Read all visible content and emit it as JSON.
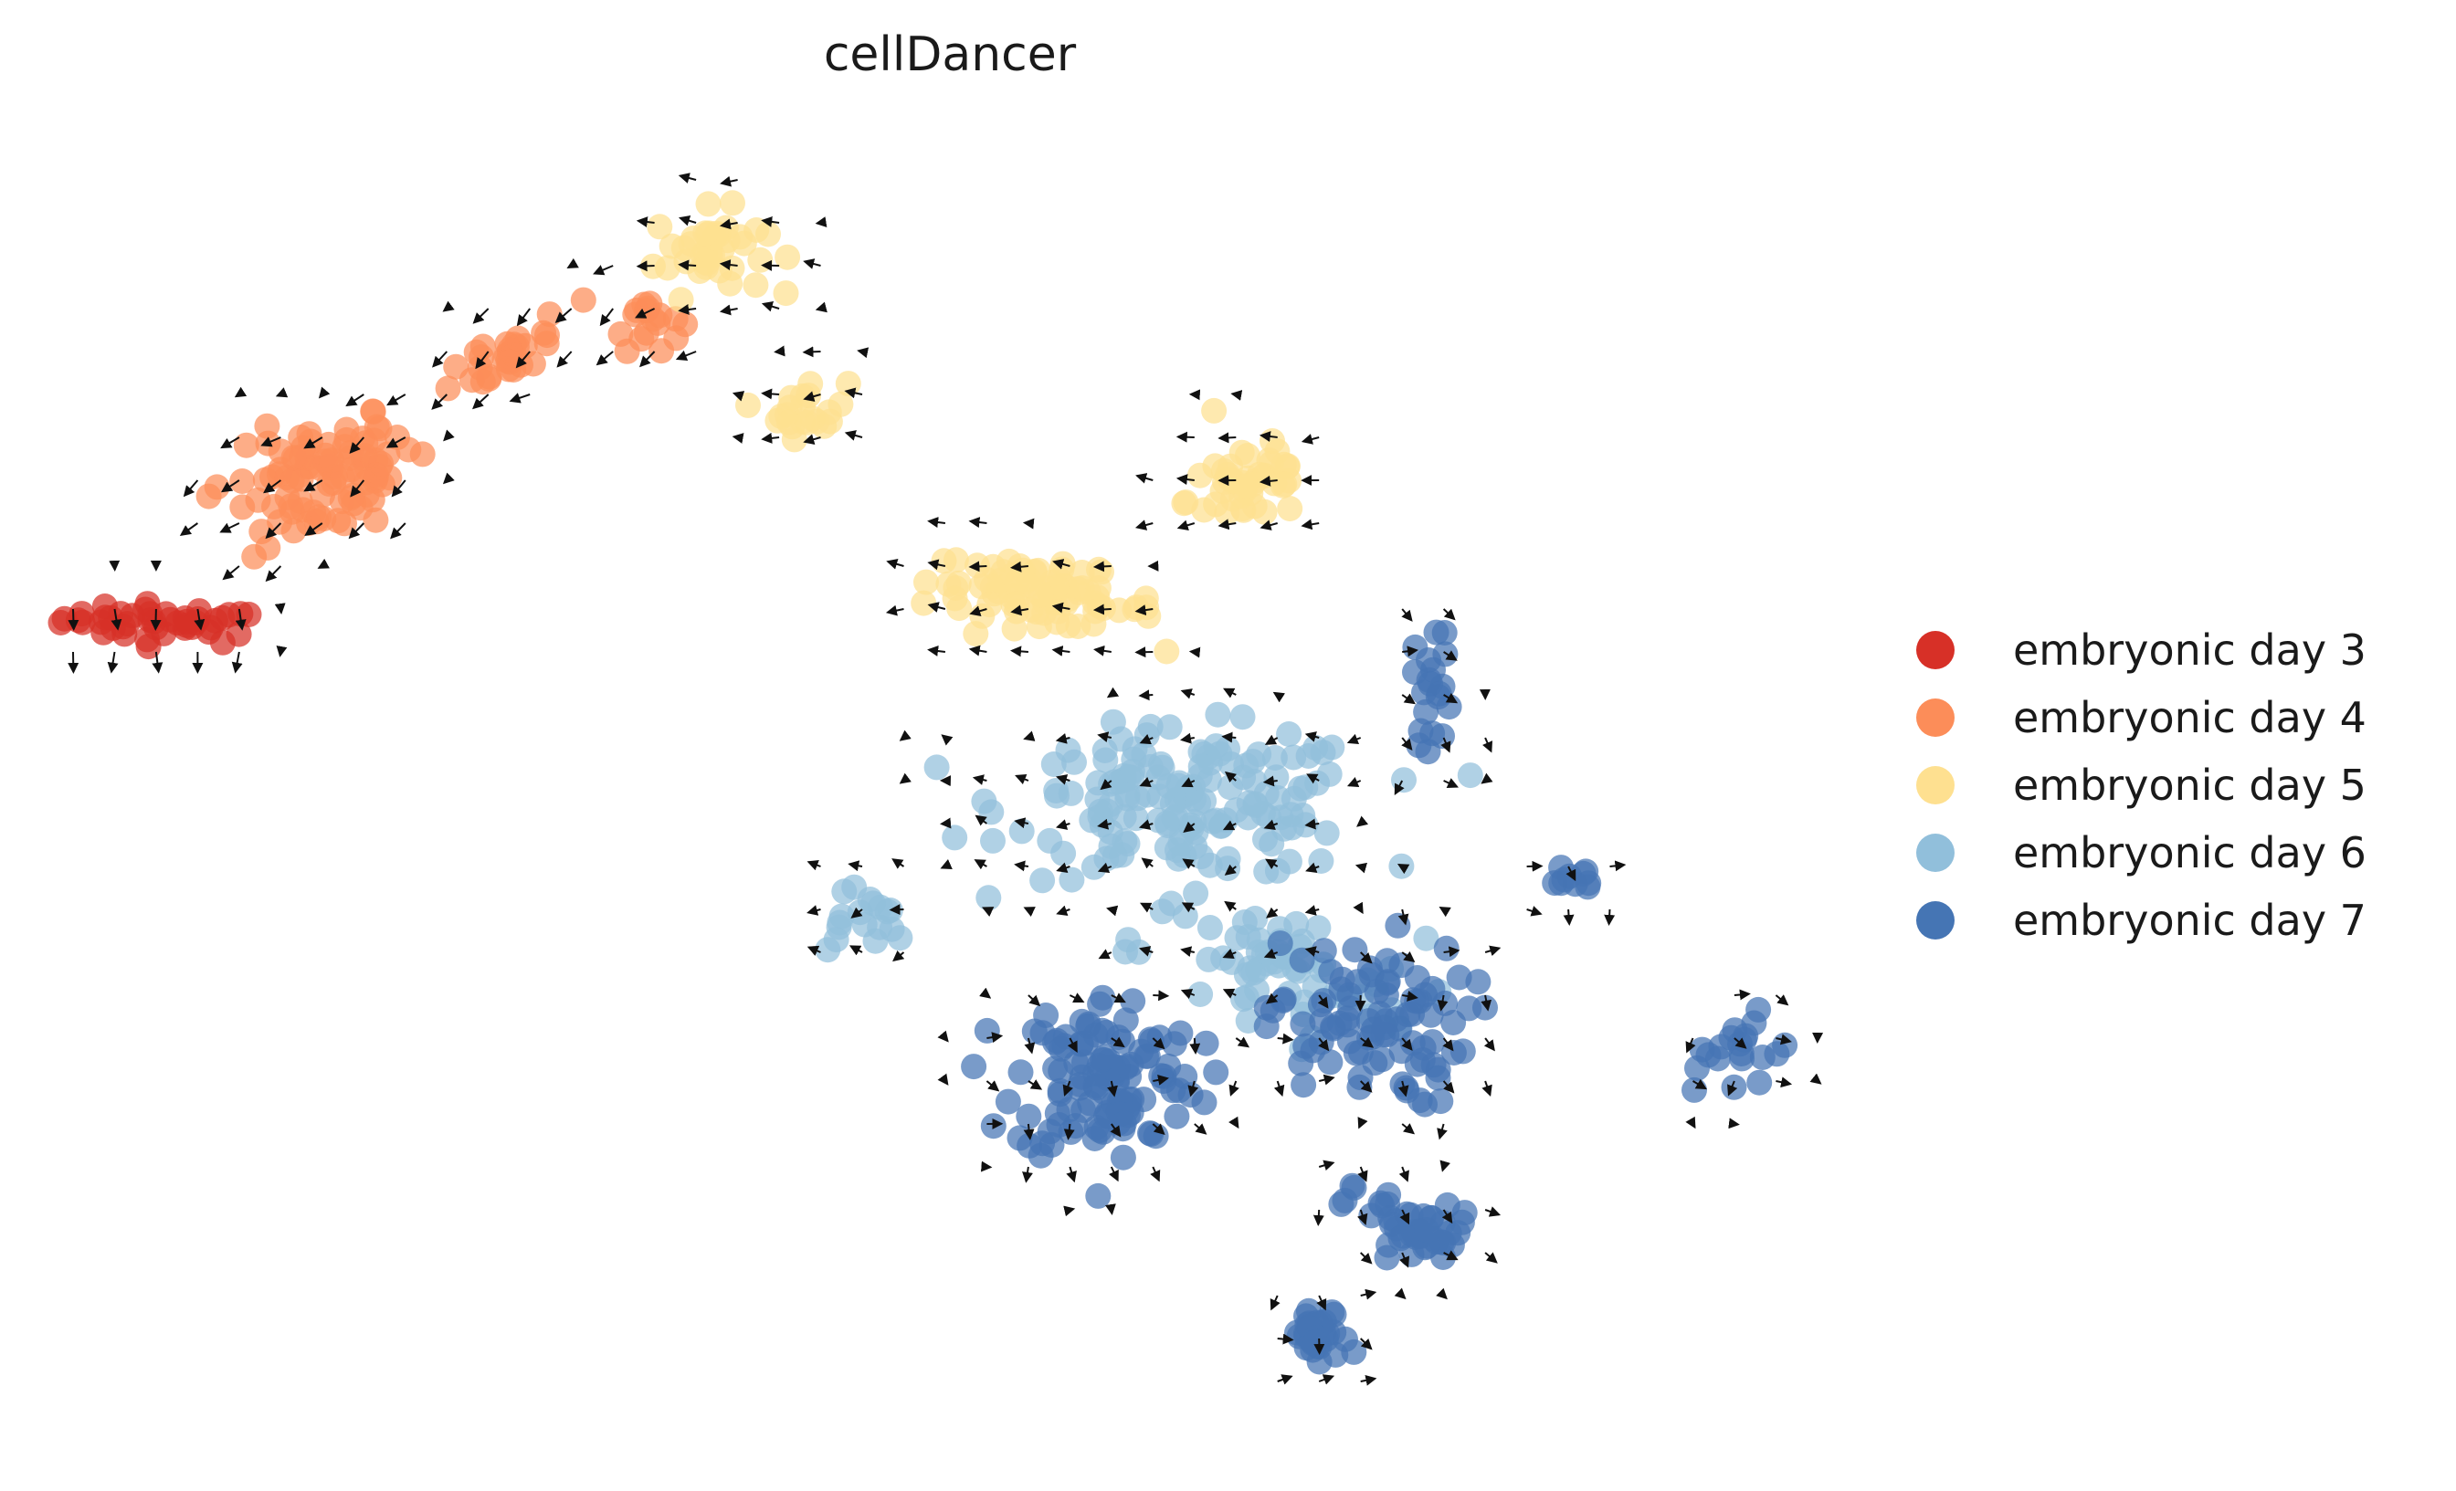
{
  "chart_data": {
    "type": "scatter",
    "title": "cellDancer",
    "xlabel": "",
    "ylabel": "",
    "axes_visible": false,
    "grid": false,
    "legend_placement": "right",
    "series": [
      {
        "name": "embryonic day 3",
        "color": "#d73027",
        "clusters": [
          {
            "cx": -12.0,
            "cy": 6.8,
            "sx": 2.0,
            "sy": 0.35,
            "n": 45,
            "tilt": -0.05
          }
        ]
      },
      {
        "name": "embryonic day 4",
        "color": "#fc8d59",
        "clusters": [
          {
            "cx": -8.6,
            "cy": 9.8,
            "sx": 1.9,
            "sy": 1.1,
            "n": 95,
            "tilt": 0.4
          },
          {
            "cx": -4.5,
            "cy": 12.5,
            "sx": 1.3,
            "sy": 0.55,
            "n": 30,
            "tilt": 0.35
          },
          {
            "cx": -1.6,
            "cy": 13.2,
            "sx": 0.7,
            "sy": 0.6,
            "n": 18,
            "tilt": 0.0
          }
        ]
      },
      {
        "name": "embryonic day 5",
        "color": "#fee090",
        "clusters": [
          {
            "cx": -0.2,
            "cy": 14.6,
            "sx": 1.1,
            "sy": 0.8,
            "n": 40,
            "tilt": 0.0
          },
          {
            "cx": 1.9,
            "cy": 11.3,
            "sx": 0.8,
            "sy": 0.55,
            "n": 22,
            "tilt": 0.0
          },
          {
            "cx": 7.0,
            "cy": 7.4,
            "sx": 2.3,
            "sy": 0.55,
            "n": 85,
            "tilt": -0.15
          },
          {
            "cx": 11.5,
            "cy": 9.8,
            "sx": 1.3,
            "sy": 0.9,
            "n": 45,
            "tilt": 0.3
          }
        ]
      },
      {
        "name": "embryonic day 6",
        "color": "#91bfdb",
        "clusters": [
          {
            "cx": 10.2,
            "cy": 3.0,
            "sx": 3.5,
            "sy": 1.4,
            "n": 160,
            "tilt": 0.0
          },
          {
            "cx": 3.0,
            "cy": 0.6,
            "sx": 1.0,
            "sy": 0.7,
            "n": 18,
            "tilt": 0.0
          },
          {
            "cx": 12.0,
            "cy": -0.5,
            "sx": 2.8,
            "sy": 1.2,
            "n": 60,
            "tilt": -0.2
          }
        ]
      },
      {
        "name": "embryonic day 7",
        "color": "#4575b4",
        "clusters": [
          {
            "cx": 8.4,
            "cy": -2.7,
            "sx": 1.8,
            "sy": 1.6,
            "n": 120,
            "tilt": 0.0
          },
          {
            "cx": 14.0,
            "cy": -1.6,
            "sx": 2.0,
            "sy": 1.6,
            "n": 90,
            "tilt": 0.0
          },
          {
            "cx": 15.0,
            "cy": -5.9,
            "sx": 1.3,
            "sy": 0.6,
            "n": 45,
            "tilt": -0.3
          },
          {
            "cx": 13.0,
            "cy": -8.2,
            "sx": 0.6,
            "sy": 0.55,
            "n": 35,
            "tilt": 0.0
          },
          {
            "cx": 18.5,
            "cy": 1.5,
            "sx": 0.45,
            "sy": 0.3,
            "n": 10,
            "tilt": 0.0
          },
          {
            "cx": 22.0,
            "cy": -2.2,
            "sx": 0.9,
            "sy": 0.55,
            "n": 20,
            "tilt": 0.4
          },
          {
            "cx": 15.5,
            "cy": 5.5,
            "sx": 0.4,
            "sy": 1.2,
            "n": 20,
            "tilt": 0.0
          }
        ]
      }
    ],
    "velocity_arrows": true,
    "xlim": [
      -14,
      24
    ],
    "ylim": [
      -10,
      17
    ]
  }
}
